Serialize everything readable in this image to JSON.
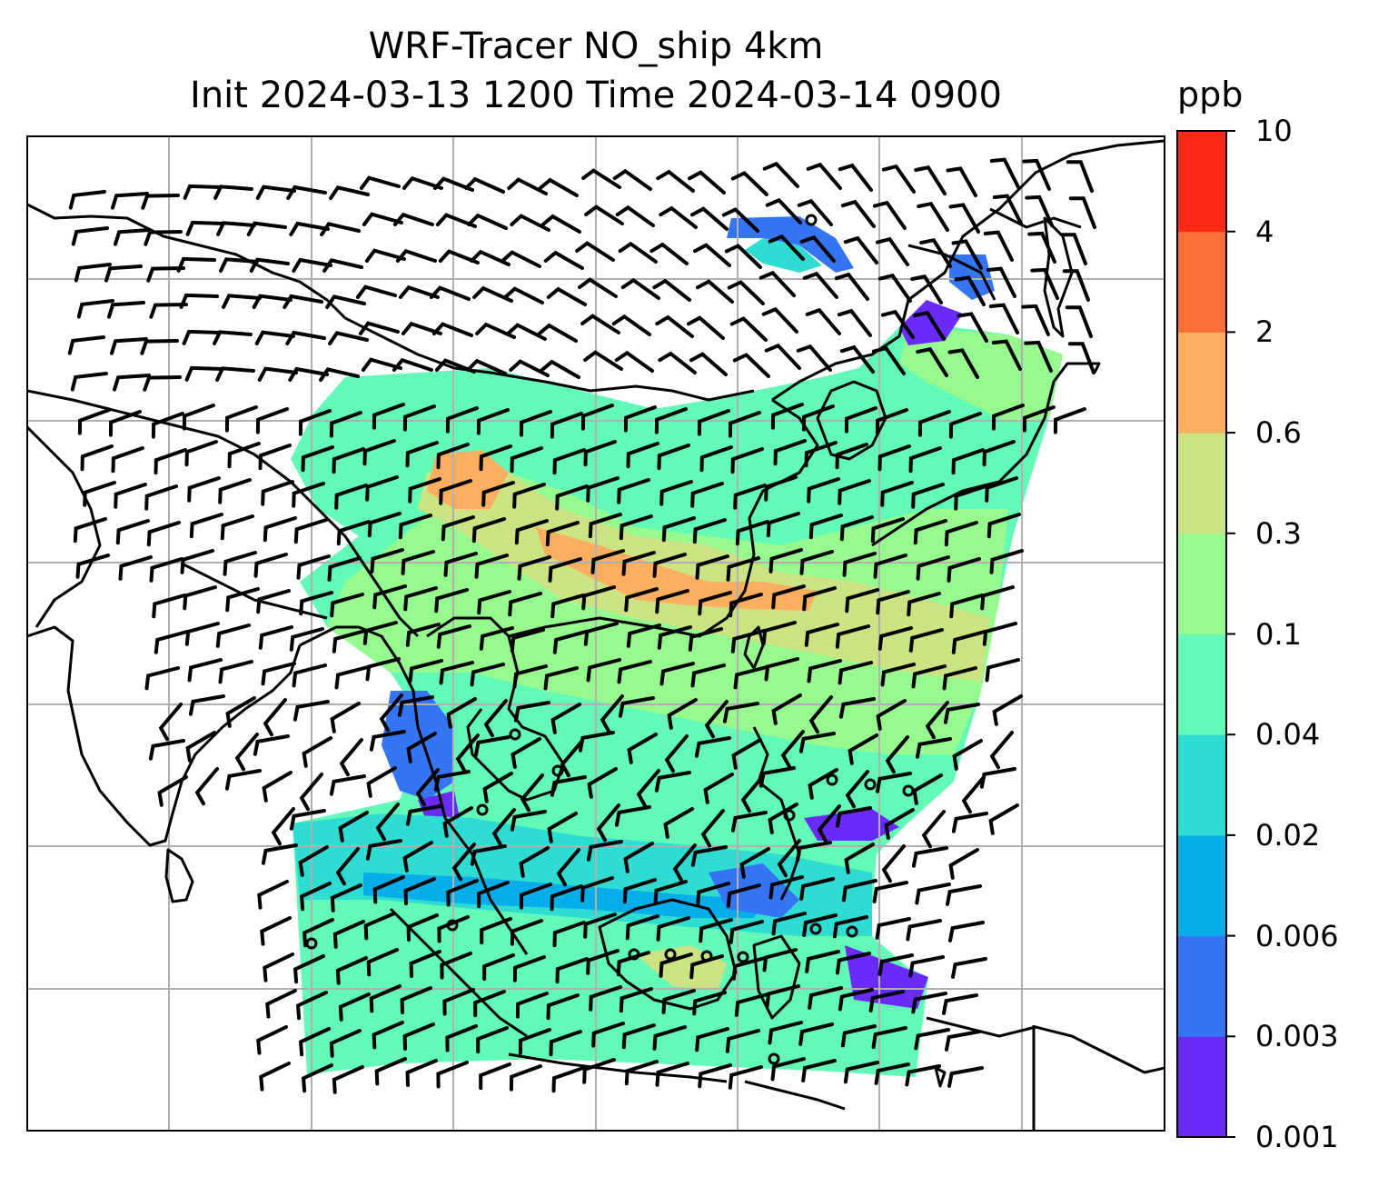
{
  "title": {
    "line1": "WRF-Tracer NO_ship 4km",
    "line2": "Init 2024-03-13 1200 Time 2024-03-14 0900"
  },
  "colorbar": {
    "unit": "ppb",
    "levels": [
      "0.001",
      "0.003",
      "0.006",
      "0.02",
      "0.04",
      "0.1",
      "0.3",
      "0.6",
      "2",
      "4",
      "10"
    ],
    "colors": [
      "#6a2bf8",
      "#3575f3",
      "#05aee8",
      "#2edcd2",
      "#63fab8",
      "#96fa8e",
      "#cbe383",
      "#fdaf5f",
      "#fe7036",
      "#fe2a15"
    ]
  },
  "map": {
    "gridlines": true,
    "coastline_color": "#000000",
    "grid_color": "#b0b0b0",
    "wind_barbs": true
  }
}
